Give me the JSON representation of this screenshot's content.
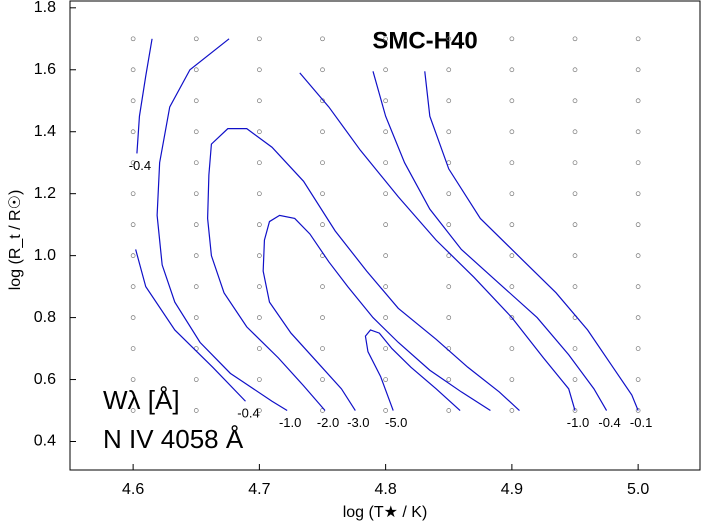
{
  "chart_data": {
    "type": "contour",
    "title": "SMC-H40",
    "x_label": "log (T★ / K)",
    "y_label": "log (R_t / R☉)",
    "annotations": [
      "Wλ [Å]",
      "N IV 4058 Å"
    ],
    "xlim": [
      4.55,
      5.049
    ],
    "ylim": [
      0.308,
      1.822
    ],
    "xticks": [
      4.6,
      4.7,
      4.8,
      4.9,
      {
        "value": 5,
        "label": "5.0"
      }
    ],
    "yticks": [
      0.4,
      0.6,
      0.8,
      {
        "value": 1,
        "label": "1.0"
      },
      1.2,
      1.4,
      1.6,
      1.8
    ],
    "color": "#1010c8",
    "model_grid": {
      "x": [
        4.6,
        4.65,
        4.7,
        4.75,
        4.8,
        4.85,
        4.9,
        4.95,
        5.0
      ],
      "y": [
        0.5,
        0.6,
        0.7,
        0.8,
        0.9,
        1.0,
        1.1,
        1.2,
        1.3,
        1.4,
        1.5,
        1.6,
        1.7
      ]
    },
    "series": [
      {
        "name": "-0.4",
        "x": [
          4.615,
          4.61,
          4.605,
          4.603
        ],
        "y": [
          1.7,
          1.58,
          1.45,
          1.33
        ]
      },
      {
        "name": "-0.4",
        "x": [
          4.602,
          4.61,
          4.633,
          4.663,
          4.689
        ],
        "y": [
          1.02,
          0.9,
          0.76,
          0.64,
          0.53
        ]
      },
      {
        "name": "-1.0",
        "x": [
          4.676,
          4.645,
          4.629,
          4.621,
          4.619,
          4.623,
          4.633,
          4.653,
          4.677,
          4.71,
          4.722
        ],
        "y": [
          1.7,
          1.6,
          1.48,
          1.3,
          1.13,
          0.97,
          0.85,
          0.72,
          0.62,
          0.53,
          0.5
        ]
      },
      {
        "name": "-2.0",
        "x": [
          4.906,
          4.89,
          4.865,
          4.84,
          4.81,
          4.785,
          4.76,
          4.735,
          4.71,
          4.69,
          4.675,
          4.662,
          4.66,
          4.659,
          4.662,
          4.672,
          4.69,
          4.715,
          4.735,
          4.752
        ],
        "y": [
          0.5,
          0.56,
          0.64,
          0.73,
          0.83,
          0.95,
          1.08,
          1.24,
          1.35,
          1.41,
          1.41,
          1.36,
          1.26,
          1.12,
          1.0,
          0.88,
          0.77,
          0.67,
          0.58,
          0.5
        ]
      },
      {
        "name": "-3.0",
        "x": [
          4.883,
          4.86,
          4.835,
          4.81,
          4.79,
          4.77,
          4.755,
          4.74,
          4.728,
          4.716,
          4.708,
          4.704,
          4.703,
          4.708,
          4.725,
          4.745,
          4.765,
          4.776
        ],
        "y": [
          0.5,
          0.56,
          0.63,
          0.72,
          0.8,
          0.9,
          0.98,
          1.07,
          1.12,
          1.13,
          1.11,
          1.05,
          0.95,
          0.85,
          0.75,
          0.66,
          0.57,
          0.5
        ]
      },
      {
        "name": "-5.0",
        "x": [
          4.859,
          4.84,
          4.82,
          4.805,
          4.795,
          4.788,
          4.784,
          4.786,
          4.796,
          4.806
        ],
        "y": [
          0.5,
          0.57,
          0.64,
          0.7,
          0.75,
          0.76,
          0.74,
          0.69,
          0.61,
          0.5
        ]
      },
      {
        "name": "-1.0",
        "x": [
          4.732,
          4.755,
          4.78,
          4.81,
          4.84,
          4.87,
          4.9,
          4.925,
          4.945,
          4.95
        ],
        "y": [
          1.59,
          1.48,
          1.34,
          1.19,
          1.05,
          0.93,
          0.8,
          0.67,
          0.57,
          0.5
        ]
      },
      {
        "name": "-0.4",
        "x": [
          4.79,
          4.8,
          4.815,
          4.835,
          4.86,
          4.89,
          4.92,
          4.945,
          4.965,
          4.975
        ],
        "y": [
          1.595,
          1.45,
          1.3,
          1.15,
          1.02,
          0.91,
          0.8,
          0.68,
          0.57,
          0.5
        ]
      },
      {
        "name": "-0.1",
        "x": [
          4.831,
          4.835,
          4.85,
          4.875,
          4.905,
          4.935,
          4.96,
          4.98,
          4.995,
          5.0
        ],
        "y": [
          1.595,
          1.45,
          1.28,
          1.12,
          1.0,
          0.88,
          0.76,
          0.64,
          0.55,
          0.5
        ]
      }
    ]
  }
}
